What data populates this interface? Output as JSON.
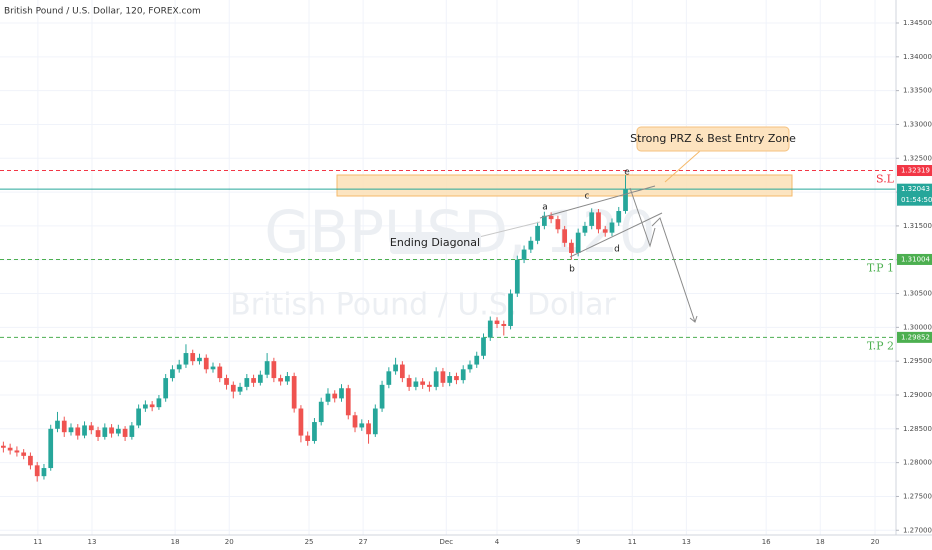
{
  "chart_data": {
    "type": "candlestick",
    "title": "British Pound / U.S. Dollar, 120, FOREX.com",
    "watermark_symbol": "GBPUSD, 120",
    "watermark_name": "British Pound / U.S. Dollar",
    "up_color": "#26a69a",
    "down_color": "#ef5350",
    "grid": true,
    "xlim": [
      0,
      132.5
    ],
    "xticks": [
      {
        "value": 5.6,
        "label": "11"
      },
      {
        "value": 13.6,
        "label": "13"
      },
      {
        "value": 25.9,
        "label": "18"
      },
      {
        "value": 33.9,
        "label": "20"
      },
      {
        "value": 45.7,
        "label": "25"
      },
      {
        "value": 53.7,
        "label": "27"
      },
      {
        "value": 66,
        "label": "Dec"
      },
      {
        "value": 73.5,
        "label": "4"
      },
      {
        "value": 85.5,
        "label": "9"
      },
      {
        "value": 93.5,
        "label": "11"
      },
      {
        "value": 101.5,
        "label": "13"
      },
      {
        "value": 113.3,
        "label": "16"
      },
      {
        "value": 121.3,
        "label": "18"
      },
      {
        "value": 129.4,
        "label": "20"
      }
    ],
    "ylim": [
      1.2693,
      1.3484
    ],
    "yticks": [
      {
        "value": 1.27,
        "label": "1.27000"
      },
      {
        "value": 1.275,
        "label": "1.27500"
      },
      {
        "value": 1.28,
        "label": "1.28000"
      },
      {
        "value": 1.285,
        "label": "1.28500"
      },
      {
        "value": 1.29,
        "label": "1.29000"
      },
      {
        "value": 1.295,
        "label": "1.29500"
      },
      {
        "value": 1.3,
        "label": "1.30000"
      },
      {
        "value": 1.305,
        "label": "1.30500"
      },
      {
        "value": 1.31,
        "label": "1.31000"
      },
      {
        "value": 1.315,
        "label": "1.31500"
      },
      {
        "value": 1.32,
        "label": "1.32000"
      },
      {
        "value": 1.325,
        "label": "1.32500"
      },
      {
        "value": 1.33,
        "label": "1.33000"
      },
      {
        "value": 1.335,
        "label": "1.33500"
      },
      {
        "value": 1.34,
        "label": "1.34000"
      },
      {
        "value": 1.345,
        "label": "1.34500"
      }
    ],
    "levels": [
      {
        "name": "S.L",
        "value": 1.32319,
        "color": "#f23645",
        "style": "dashed"
      },
      {
        "value": 1.32043,
        "countdown": "01:54:50",
        "color": "#26a69a",
        "style": "solid"
      },
      {
        "name": "T.P 1",
        "value": 1.31004,
        "color": "#4caf50",
        "style": "dashed"
      },
      {
        "name": "T.P 2",
        "value": 1.29852,
        "color": "#4caf50",
        "style": "dashed"
      }
    ],
    "annotations": {
      "zone": "Strong PRZ & Best Entry Zone",
      "pattern": "Ending Diagonal",
      "waves": [
        "a",
        "b",
        "c",
        "d",
        "e"
      ]
    },
    "ohlc": [
      [
        1.2825,
        1.2831,
        1.2815,
        1.2822
      ],
      [
        1.2822,
        1.2828,
        1.2812,
        1.2818
      ],
      [
        1.2818,
        1.2824,
        1.2809,
        1.2815
      ],
      [
        1.2815,
        1.282,
        1.2805,
        1.281
      ],
      [
        1.281,
        1.2815,
        1.279,
        1.2796
      ],
      [
        1.2796,
        1.2801,
        1.2772,
        1.278
      ],
      [
        1.278,
        1.2798,
        1.2775,
        1.2792
      ],
      [
        1.2792,
        1.2856,
        1.2788,
        1.285
      ],
      [
        1.285,
        1.2875,
        1.2845,
        1.2862
      ],
      [
        1.2862,
        1.2868,
        1.2838,
        1.2845
      ],
      [
        1.2845,
        1.2858,
        1.284,
        1.2852
      ],
      [
        1.2852,
        1.2857,
        1.2834,
        1.284
      ],
      [
        1.284,
        1.2861,
        1.2836,
        1.2855
      ],
      [
        1.2855,
        1.286,
        1.2842,
        1.2848
      ],
      [
        1.2848,
        1.2853,
        1.2832,
        1.2838
      ],
      [
        1.2838,
        1.2858,
        1.2834,
        1.2852
      ],
      [
        1.2852,
        1.2857,
        1.2837,
        1.2843
      ],
      [
        1.2843,
        1.2856,
        1.2839,
        1.285
      ],
      [
        1.285,
        1.2854,
        1.2832,
        1.2838
      ],
      [
        1.2838,
        1.286,
        1.2834,
        1.2855
      ],
      [
        1.2855,
        1.2886,
        1.2851,
        1.288
      ],
      [
        1.288,
        1.2892,
        1.2875,
        1.2886
      ],
      [
        1.2886,
        1.2891,
        1.2876,
        1.2882
      ],
      [
        1.2882,
        1.29,
        1.2878,
        1.2895
      ],
      [
        1.2895,
        1.2931,
        1.289,
        1.2925
      ],
      [
        1.2925,
        1.2944,
        1.292,
        1.2938
      ],
      [
        1.2938,
        1.2952,
        1.2933,
        1.2945
      ],
      [
        1.2945,
        1.2975,
        1.294,
        1.2962
      ],
      [
        1.2962,
        1.2967,
        1.2944,
        1.295
      ],
      [
        1.295,
        1.2961,
        1.2945,
        1.2955
      ],
      [
        1.2955,
        1.296,
        1.2932,
        1.2938
      ],
      [
        1.2938,
        1.2948,
        1.2933,
        1.2942
      ],
      [
        1.2942,
        1.2947,
        1.2919,
        1.2925
      ],
      [
        1.2925,
        1.293,
        1.2908,
        1.2915
      ],
      [
        1.2915,
        1.292,
        1.2895,
        1.2905
      ],
      [
        1.2905,
        1.2918,
        1.29,
        1.2912
      ],
      [
        1.2912,
        1.2931,
        1.2907,
        1.2925
      ],
      [
        1.2925,
        1.293,
        1.2912,
        1.2918
      ],
      [
        1.2918,
        1.2936,
        1.2914,
        1.293
      ],
      [
        1.293,
        1.2962,
        1.2925,
        1.295
      ],
      [
        1.295,
        1.2955,
        1.2919,
        1.2925
      ],
      [
        1.2925,
        1.293,
        1.2914,
        1.292
      ],
      [
        1.292,
        1.2934,
        1.2915,
        1.2928
      ],
      [
        1.2928,
        1.2933,
        1.2874,
        1.288
      ],
      [
        1.288,
        1.2885,
        1.283,
        1.284
      ],
      [
        1.284,
        1.2846,
        1.2825,
        1.2832
      ],
      [
        1.2832,
        1.2866,
        1.2828,
        1.286
      ],
      [
        1.286,
        1.2896,
        1.2855,
        1.289
      ],
      [
        1.289,
        1.291,
        1.2885,
        1.2902
      ],
      [
        1.2902,
        1.2907,
        1.2889,
        1.2895
      ],
      [
        1.2895,
        1.2916,
        1.289,
        1.291
      ],
      [
        1.291,
        1.2915,
        1.2864,
        1.287
      ],
      [
        1.287,
        1.2875,
        1.2845,
        1.2852
      ],
      [
        1.2852,
        1.2864,
        1.2847,
        1.2858
      ],
      [
        1.2858,
        1.2863,
        1.2828,
        1.2842
      ],
      [
        1.2842,
        1.2886,
        1.2838,
        1.288
      ],
      [
        1.288,
        1.2921,
        1.2875,
        1.2915
      ],
      [
        1.2915,
        1.2941,
        1.291,
        1.2935
      ],
      [
        1.2935,
        1.2955,
        1.293,
        1.2945
      ],
      [
        1.2945,
        1.295,
        1.2919,
        1.2925
      ],
      [
        1.2925,
        1.293,
        1.2906,
        1.2912
      ],
      [
        1.2912,
        1.2926,
        1.2907,
        1.292
      ],
      [
        1.292,
        1.2925,
        1.2909,
        1.2915
      ],
      [
        1.2915,
        1.292,
        1.2905,
        1.2912
      ],
      [
        1.2912,
        1.2941,
        1.2907,
        1.2935
      ],
      [
        1.2935,
        1.294,
        1.2912,
        1.2918
      ],
      [
        1.2918,
        1.2934,
        1.2913,
        1.2928
      ],
      [
        1.2928,
        1.2933,
        1.2916,
        1.2922
      ],
      [
        1.2922,
        1.2944,
        1.2917,
        1.2938
      ],
      [
        1.2938,
        1.2951,
        1.2933,
        1.2945
      ],
      [
        1.2945,
        1.2964,
        1.294,
        1.2958
      ],
      [
        1.2958,
        1.2991,
        1.2953,
        1.2985
      ],
      [
        1.2985,
        1.3016,
        1.298,
        1.301
      ],
      [
        1.301,
        1.3015,
        1.2999,
        1.3005
      ],
      [
        1.3005,
        1.301,
        1.2988,
        1.3002
      ],
      [
        1.3002,
        1.3056,
        1.2997,
        1.305
      ],
      [
        1.305,
        1.3106,
        1.3045,
        1.31
      ],
      [
        1.31,
        1.3121,
        1.3095,
        1.3115
      ],
      [
        1.3115,
        1.3134,
        1.311,
        1.3128
      ],
      [
        1.3128,
        1.3156,
        1.3123,
        1.315
      ],
      [
        1.315,
        1.3171,
        1.3145,
        1.3165
      ],
      [
        1.3165,
        1.317,
        1.3154,
        1.316
      ],
      [
        1.316,
        1.3165,
        1.3139,
        1.3145
      ],
      [
        1.3145,
        1.315,
        1.3119,
        1.3125
      ],
      [
        1.3125,
        1.313,
        1.31,
        1.311
      ],
      [
        1.311,
        1.3146,
        1.3105,
        1.314
      ],
      [
        1.314,
        1.3156,
        1.3135,
        1.315
      ],
      [
        1.315,
        1.3176,
        1.3145,
        1.317
      ],
      [
        1.317,
        1.3175,
        1.3139,
        1.3145
      ],
      [
        1.3145,
        1.315,
        1.3134,
        1.314
      ],
      [
        1.314,
        1.3161,
        1.3135,
        1.3155
      ],
      [
        1.3155,
        1.3178,
        1.315,
        1.3172
      ],
      [
        1.3172,
        1.3225,
        1.3168,
        1.32043
      ]
    ]
  }
}
